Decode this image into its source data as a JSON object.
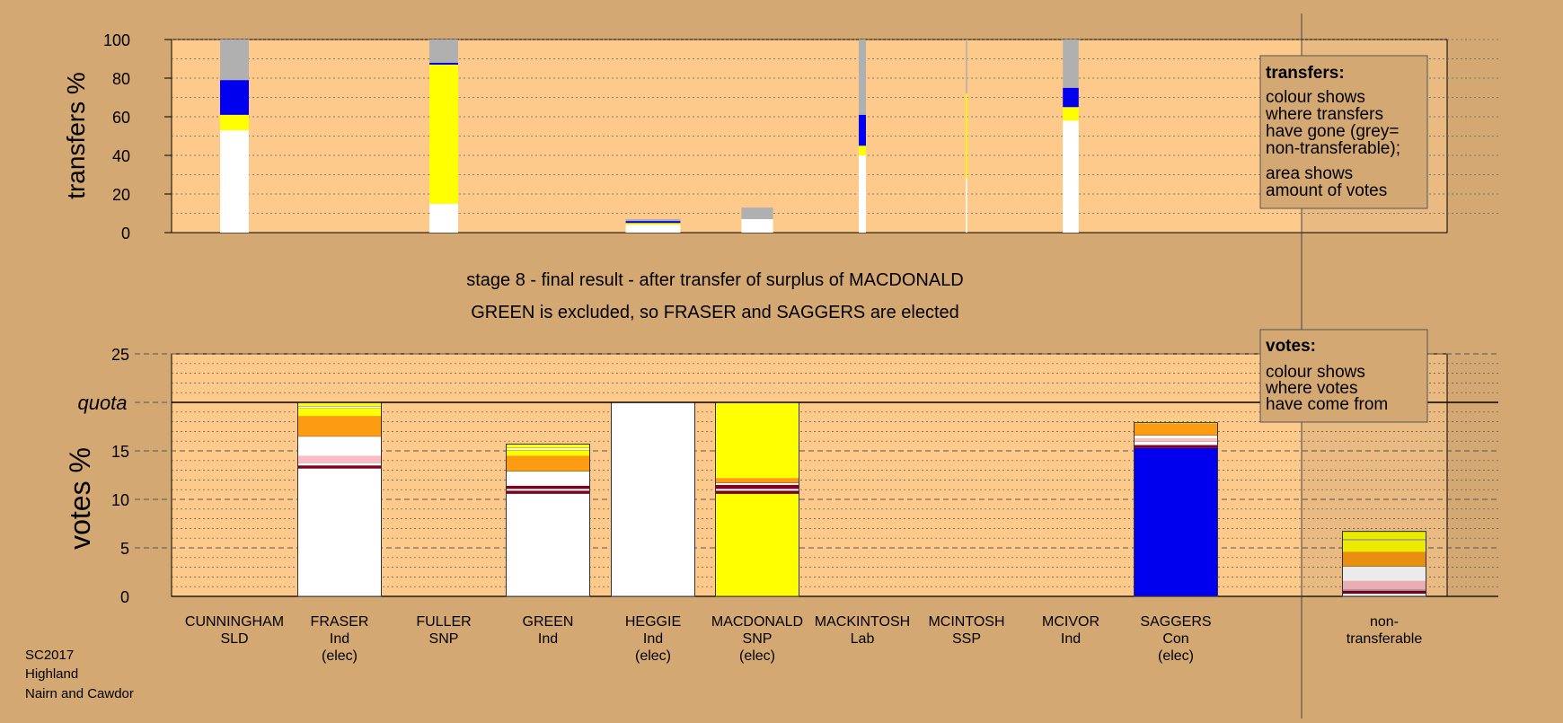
{
  "headings": {
    "line1": "stage 8 - final result - after transfer of surplus of MACDONALD",
    "line2": "GREEN is excluded, so FRASER and SAGGERS are elected"
  },
  "footer": [
    "SC2017",
    "Highland",
    "Nairn and Cawdor"
  ],
  "colors": {
    "background": "#d4a872",
    "plot": "#fdca8c",
    "white": "#ffffff",
    "yellow": "#ffff00",
    "blue": "#0000ee",
    "orange": "#fd9c12",
    "pink": "#fdbcc4",
    "darkred": "#800020",
    "grey": "#b0b0b0"
  },
  "chart_data": [
    {
      "type": "bar",
      "ylabel": "transfers %",
      "ylim": [
        0,
        100
      ],
      "yticks": [
        0,
        20,
        40,
        60,
        80,
        100
      ],
      "legend": {
        "title": "transfers:",
        "lines": [
          "colour shows",
          "where transfers",
          "have gone (grey=",
          "non-transferable);",
          "area shows",
          "amount of votes"
        ]
      },
      "bars": [
        {
          "candidate": "CUNNINGHAM",
          "width_share": 1.0,
          "segments": [
            {
              "color": "white",
              "value": 53
            },
            {
              "color": "yellow",
              "value": 8
            },
            {
              "color": "blue",
              "value": 18
            },
            {
              "color": "grey",
              "value": 21
            }
          ]
        },
        {
          "candidate": "FULLER",
          "width_share": 1.0,
          "segments": [
            {
              "color": "white",
              "value": 15
            },
            {
              "color": "yellow",
              "value": 72
            },
            {
              "color": "blue",
              "value": 1
            },
            {
              "color": "grey",
              "value": 12
            }
          ]
        },
        {
          "candidate": "HEGGIE",
          "width_share": 1.9,
          "segments": [
            {
              "color": "white",
              "value": 4
            },
            {
              "color": "yellow",
              "value": 1
            },
            {
              "color": "blue",
              "value": 1
            },
            {
              "color": "grey",
              "value": 1
            }
          ]
        },
        {
          "candidate": "MACDONALD",
          "width_share": 1.1,
          "segments": [
            {
              "color": "white",
              "value": 7
            },
            {
              "color": "grey",
              "value": 6
            }
          ]
        },
        {
          "candidate": "MACKINTOSH",
          "width_share": 0.25,
          "segments": [
            {
              "color": "white",
              "value": 40
            },
            {
              "color": "yellow",
              "value": 5
            },
            {
              "color": "blue",
              "value": 16
            },
            {
              "color": "grey",
              "value": 39
            }
          ]
        },
        {
          "candidate": "MCINTOSH",
          "width_share": 0.05,
          "segments": [
            {
              "color": "white",
              "value": 28
            },
            {
              "color": "yellow",
              "value": 44
            },
            {
              "color": "grey",
              "value": 28
            }
          ]
        },
        {
          "candidate": "MCIVOR",
          "width_share": 0.55,
          "segments": [
            {
              "color": "white",
              "value": 58
            },
            {
              "color": "yellow",
              "value": 7
            },
            {
              "color": "blue",
              "value": 10
            },
            {
              "color": "grey",
              "value": 25
            }
          ]
        }
      ]
    },
    {
      "type": "bar",
      "ylabel": "votes %",
      "ylim": [
        0,
        25
      ],
      "yticks": [
        0,
        5,
        10,
        15,
        20,
        25
      ],
      "quota": {
        "label": "quota",
        "value": 20
      },
      "legend": {
        "title": "votes:",
        "lines": [
          "colour shows",
          "where votes",
          "have come from"
        ]
      },
      "categories": [
        {
          "name": "CUNNINGHAM",
          "party": "SLD",
          "status": ""
        },
        {
          "name": "FRASER",
          "party": "Ind",
          "status": "(elec)"
        },
        {
          "name": "FULLER",
          "party": "SNP",
          "status": ""
        },
        {
          "name": "GREEN",
          "party": "Ind",
          "status": ""
        },
        {
          "name": "HEGGIE",
          "party": "Ind",
          "status": "(elec)"
        },
        {
          "name": "MACDONALD",
          "party": "SNP",
          "status": "(elec)"
        },
        {
          "name": "MACKINTOSH",
          "party": "Lab",
          "status": ""
        },
        {
          "name": "MCINTOSH",
          "party": "SSP",
          "status": ""
        },
        {
          "name": "MCIVOR",
          "party": "Ind",
          "status": ""
        },
        {
          "name": "SAGGERS",
          "party": "Con",
          "status": "(elec)"
        },
        {
          "name": "",
          "party": "",
          "status": ""
        },
        {
          "name": "non-",
          "party": "transferable",
          "status": ""
        }
      ],
      "bars": [
        {
          "index": 1,
          "segments": [
            {
              "color": "white",
              "value": 13.2
            },
            {
              "color": "darkred",
              "value": 0.3
            },
            {
              "color": "white",
              "value": 0.3
            },
            {
              "color": "pink",
              "value": 0.7
            },
            {
              "color": "white",
              "value": 2
            },
            {
              "color": "orange",
              "value": 2.1
            },
            {
              "color": "yellow",
              "value": 0.8
            },
            {
              "color": "white",
              "value": 0.2
            },
            {
              "color": "yellow",
              "value": 0.4
            }
          ]
        },
        {
          "index": 3,
          "segments": [
            {
              "color": "white",
              "value": 10.6
            },
            {
              "color": "darkred",
              "value": 0.3
            },
            {
              "color": "white",
              "value": 0.2
            },
            {
              "color": "darkred",
              "value": 0.3
            },
            {
              "color": "white",
              "value": 1.5
            },
            {
              "color": "orange",
              "value": 1.6
            },
            {
              "color": "yellow",
              "value": 0.6
            },
            {
              "color": "white",
              "value": 0.2
            },
            {
              "color": "yellow",
              "value": 0.4
            }
          ]
        },
        {
          "index": 4,
          "segments": [
            {
              "color": "white",
              "value": 20
            }
          ]
        },
        {
          "index": 5,
          "segments": [
            {
              "color": "yellow",
              "value": 10.6
            },
            {
              "color": "darkred",
              "value": 0.3
            },
            {
              "color": "white",
              "value": 0.2
            },
            {
              "color": "darkred",
              "value": 0.4
            },
            {
              "color": "white",
              "value": 0.2
            },
            {
              "color": "orange",
              "value": 0.5
            },
            {
              "color": "yellow",
              "value": 7.8
            }
          ]
        },
        {
          "index": 9,
          "segments": [
            {
              "color": "blue",
              "value": 15.3
            },
            {
              "color": "darkred",
              "value": 0.3
            },
            {
              "color": "white",
              "value": 0.4
            },
            {
              "color": "pink",
              "value": 0.3
            },
            {
              "color": "white",
              "value": 0.3
            },
            {
              "color": "orange",
              "value": 1.2
            },
            {
              "color": "yellow",
              "value": 0.1
            }
          ]
        },
        {
          "index": 11,
          "segments": [
            {
              "color": "white",
              "value": 0.3
            },
            {
              "color": "darkred",
              "value": 0.3
            },
            {
              "color": "white",
              "value": 0.1
            },
            {
              "color": "pink",
              "value": 0.9
            },
            {
              "color": "white",
              "value": 1.5
            },
            {
              "color": "orange",
              "value": 1.5
            },
            {
              "color": "yellow",
              "value": 1.2
            },
            {
              "color": "white",
              "value": 0.1
            },
            {
              "color": "yellow",
              "value": 0.8
            }
          ]
        }
      ]
    }
  ]
}
